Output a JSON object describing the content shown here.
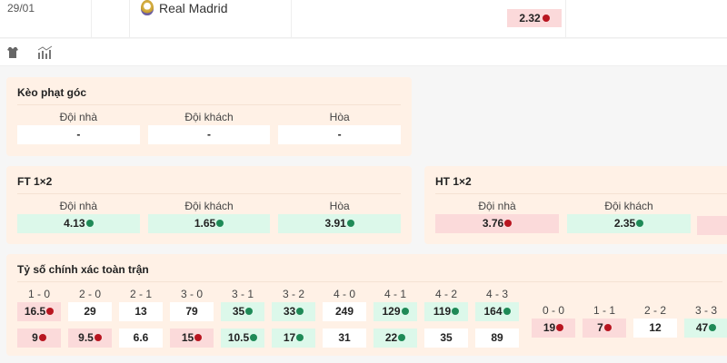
{
  "match": {
    "date": "29/01",
    "team": "Real Madrid",
    "odd": {
      "value": "2.32",
      "trend": "down"
    }
  },
  "toolbar": {
    "icons": [
      "shirt-icon",
      "stats-chart-icon"
    ]
  },
  "corner": {
    "title": "Kèo phạt góc",
    "cols": [
      {
        "label": "Đội nhà",
        "value": "-"
      },
      {
        "label": "Đội khách",
        "value": "-"
      },
      {
        "label": "Hòa",
        "value": "-"
      }
    ]
  },
  "ft": {
    "title": "FT 1×2",
    "cols": [
      {
        "label": "Đội nhà",
        "value": "4.13",
        "trend": "up"
      },
      {
        "label": "Đội khách",
        "value": "1.65",
        "trend": "up"
      },
      {
        "label": "Hòa",
        "value": "3.91",
        "trend": "up"
      }
    ]
  },
  "ht": {
    "title": "HT 1×2",
    "cols": [
      {
        "label": "Đội nhà",
        "value": "3.76",
        "trend": "down"
      },
      {
        "label": "Đội khách",
        "value": "2.35",
        "trend": "up"
      }
    ]
  },
  "correct": {
    "title": "Tỷ số chính xác toàn trận",
    "home": [
      {
        "score": "1 - 0",
        "a": "16.5",
        "at": "down",
        "b": "9",
        "bt": "down"
      },
      {
        "score": "2 - 0",
        "a": "29",
        "at": "",
        "b": "9.5",
        "bt": "down"
      },
      {
        "score": "2 - 1",
        "a": "13",
        "at": "",
        "b": "6.6",
        "bt": ""
      },
      {
        "score": "3 - 0",
        "a": "79",
        "at": "",
        "b": "15",
        "bt": "down"
      },
      {
        "score": "3 - 1",
        "a": "35",
        "at": "up",
        "b": "10.5",
        "bt": "up"
      },
      {
        "score": "3 - 2",
        "a": "33",
        "at": "up",
        "b": "17",
        "bt": "up"
      },
      {
        "score": "4 - 0",
        "a": "249",
        "at": "",
        "b": "31",
        "bt": ""
      },
      {
        "score": "4 - 1",
        "a": "129",
        "at": "up",
        "b": "22",
        "bt": "up"
      },
      {
        "score": "4 - 2",
        "a": "119",
        "at": "up",
        "b": "35",
        "bt": ""
      },
      {
        "score": "4 - 3",
        "a": "164",
        "at": "up",
        "b": "89",
        "bt": ""
      }
    ],
    "draw": [
      {
        "score": "0 - 0",
        "a": "19",
        "at": "down"
      },
      {
        "score": "1 - 1",
        "a": "7",
        "at": "down"
      },
      {
        "score": "2 - 2",
        "a": "12",
        "at": ""
      },
      {
        "score": "3 - 3",
        "a": "47",
        "at": "up"
      }
    ]
  },
  "colors": {
    "up": "#1f8a57",
    "down": "#b81520",
    "up_bg": "#dcf8ea",
    "down_bg": "#fbdada",
    "panel": "#fff1e6"
  }
}
